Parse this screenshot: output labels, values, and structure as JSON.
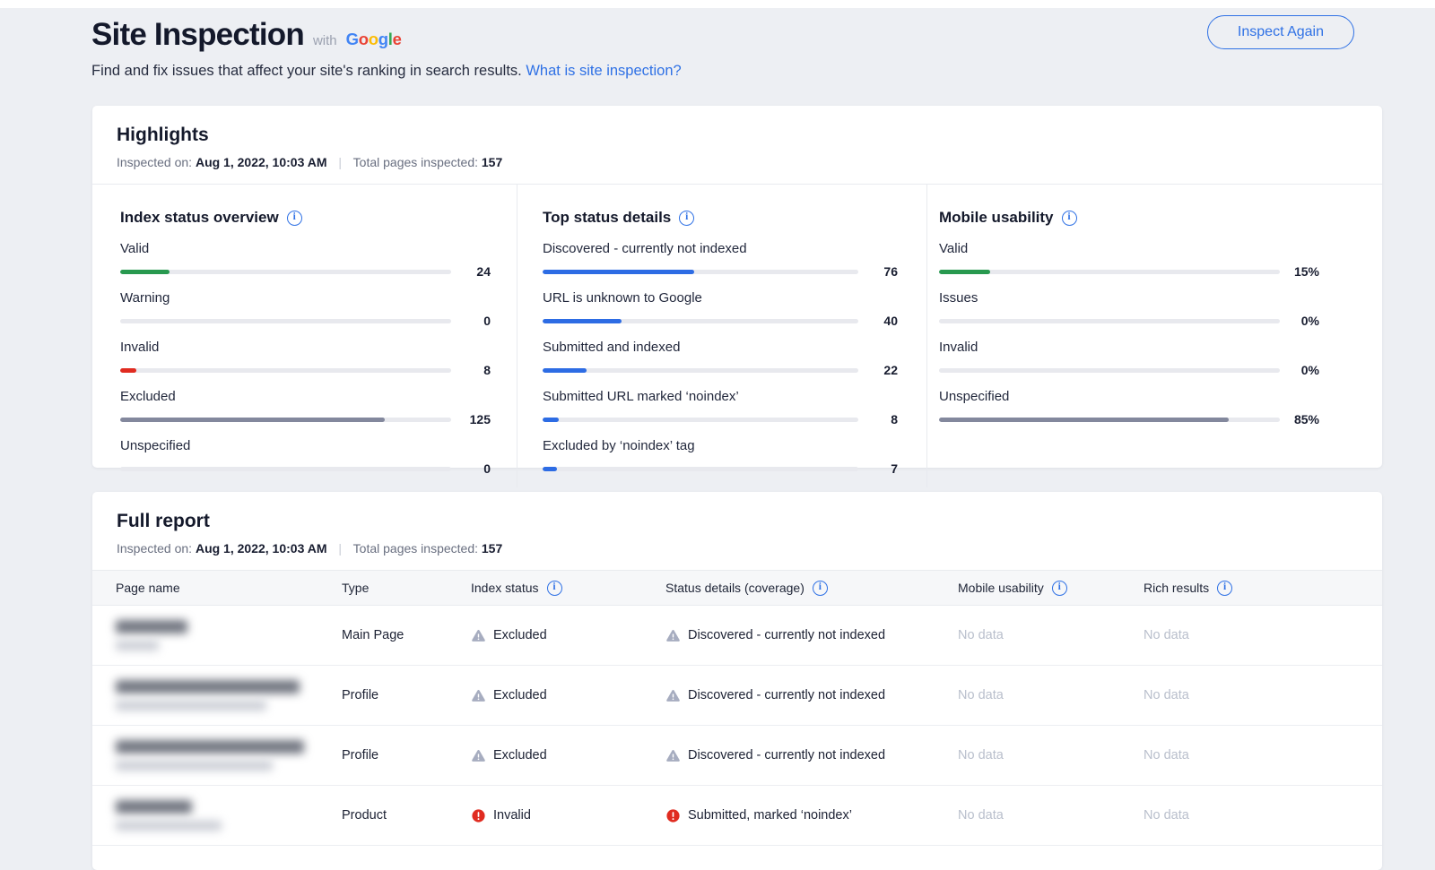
{
  "colors": {
    "accent_blue": "#2f71e5",
    "bar_green": "#28994f",
    "bar_red": "#e02b20",
    "bar_slate": "#83889d",
    "bar_blue": "#2d6ce4",
    "page_background": "#edeff3"
  },
  "header": {
    "title": "Site Inspection",
    "with_label": "with",
    "brand_letters": [
      {
        "ch": "G",
        "color": "#4285F4"
      },
      {
        "ch": "o",
        "color": "#EA4335"
      },
      {
        "ch": "o",
        "color": "#FBBC05"
      },
      {
        "ch": "g",
        "color": "#4285F4"
      },
      {
        "ch": "l",
        "color": "#34A853"
      },
      {
        "ch": "e",
        "color": "#EA4335"
      }
    ],
    "subtitle": "Find and fix issues that affect your site's ranking in search results.",
    "link_label": "What is site inspection?",
    "button_label": "Inspect Again"
  },
  "highlights": {
    "title": "Highlights",
    "inspected_label": "Inspected on:",
    "inspected_value": "Aug 1, 2022, 10:03 AM",
    "separator": "|",
    "total_label": "Total pages inspected:",
    "total_value": "157",
    "columns": [
      {
        "title": "Index status overview",
        "items": [
          {
            "label": "Valid",
            "value": "24",
            "pct": "15%",
            "color": "green"
          },
          {
            "label": "Warning",
            "value": "0",
            "pct": "0%",
            "color": "none"
          },
          {
            "label": "Invalid",
            "value": "8",
            "pct": "5%",
            "color": "red"
          },
          {
            "label": "Excluded",
            "value": "125",
            "pct": "80%",
            "color": "slate"
          },
          {
            "label": "Unspecified",
            "value": "0",
            "pct": "0%",
            "color": "none"
          }
        ]
      },
      {
        "title": "Top status details",
        "items": [
          {
            "label": "Discovered - currently not indexed",
            "value": "76",
            "pct": "48%",
            "color": "blue"
          },
          {
            "label": "URL is unknown to Google",
            "value": "40",
            "pct": "25%",
            "color": "blue"
          },
          {
            "label": "Submitted and indexed",
            "value": "22",
            "pct": "14%",
            "color": "blue"
          },
          {
            "label": "Submitted URL marked ‘noindex’",
            "value": "8",
            "pct": "5%",
            "color": "blue"
          },
          {
            "label": "Excluded by ‘noindex’ tag",
            "value": "7",
            "pct": "4.5%",
            "color": "blue"
          }
        ]
      },
      {
        "title": "Mobile usability",
        "items": [
          {
            "label": "Valid",
            "value": "15%",
            "pct": "15%",
            "color": "green"
          },
          {
            "label": "Issues",
            "value": "0%",
            "pct": "0%",
            "color": "none"
          },
          {
            "label": "Invalid",
            "value": "0%",
            "pct": "0%",
            "color": "none"
          },
          {
            "label": "Unspecified",
            "value": "85%",
            "pct": "85%",
            "color": "slate"
          }
        ]
      }
    ]
  },
  "full_report": {
    "title": "Full report",
    "inspected_label": "Inspected on:",
    "inspected_value": "Aug 1, 2022, 10:03 AM",
    "separator": "|",
    "total_label": "Total pages inspected:",
    "total_value": "157",
    "table": {
      "headers": [
        "Page name",
        "Type",
        "Index status",
        "Status details (coverage)",
        "Mobile usability",
        "Rich results"
      ],
      "rows": [
        {
          "type": "Main Page",
          "index_status": "Excluded",
          "index_severity": "warning",
          "status_details": "Discovered - currently not indexed",
          "status_severity": "warning",
          "mobile_usability": "No data",
          "rich_results": "No data"
        },
        {
          "type": "Profile",
          "index_status": "Excluded",
          "index_severity": "warning",
          "status_details": "Discovered - currently not indexed",
          "status_severity": "warning",
          "mobile_usability": "No data",
          "rich_results": "No data"
        },
        {
          "type": "Profile",
          "index_status": "Excluded",
          "index_severity": "warning",
          "status_details": "Discovered - currently not indexed",
          "status_severity": "warning",
          "mobile_usability": "No data",
          "rich_results": "No data"
        },
        {
          "type": "Product",
          "index_status": "Invalid",
          "index_severity": "error",
          "status_details": "Submitted, marked ‘noindex’",
          "status_severity": "error",
          "mobile_usability": "No data",
          "rich_results": "No data"
        }
      ]
    }
  }
}
